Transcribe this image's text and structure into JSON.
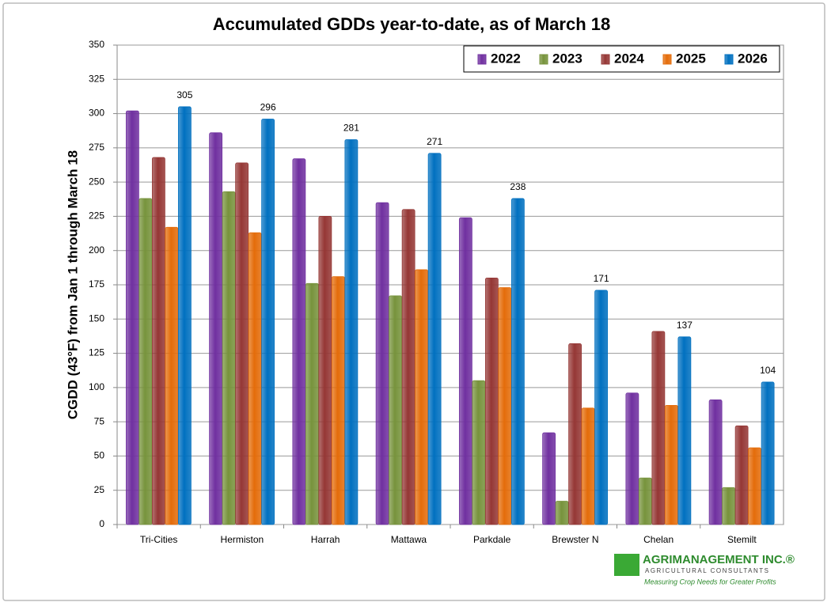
{
  "chart_data": {
    "type": "bar",
    "title": "Accumulated GDDs year-to-date, as of March 18",
    "y_label": "CGDD (43°F) from Jan 1 through March 18",
    "categories": [
      "Tri-Cities",
      "Hermiston",
      "Harrah",
      "Mattawa",
      "Parkdale",
      "Brewster N",
      "Chelan",
      "Stemilt"
    ],
    "series": [
      {
        "name": "2022",
        "color": "#7030a0",
        "values": [
          302,
          286,
          267,
          235,
          224,
          67,
          96,
          91
        ]
      },
      {
        "name": "2023",
        "color": "#77933c",
        "values": [
          238,
          243,
          176,
          167,
          105,
          17,
          34,
          27
        ]
      },
      {
        "name": "2024",
        "color": "#953735",
        "values": [
          268,
          264,
          225,
          230,
          180,
          132,
          141,
          72
        ]
      },
      {
        "name": "2025",
        "color": "#e46c0a",
        "values": [
          217,
          213,
          181,
          186,
          173,
          85,
          87,
          56
        ]
      },
      {
        "name": "2026",
        "color": "#0070c0",
        "values": [
          305,
          296,
          281,
          271,
          238,
          171,
          137,
          104
        ],
        "show_values": true
      }
    ],
    "ylim": [
      0,
      350
    ],
    "yticks": [
      0,
      25,
      50,
      75,
      100,
      125,
      150,
      175,
      200,
      225,
      250,
      275,
      300,
      325,
      350
    ],
    "grid": true,
    "legend": "top-right"
  },
  "logo": {
    "name": "AGRIMANAGEMENT INC.®",
    "subtitle": "AGRICULTURAL CONSULTANTS",
    "tagline": "Measuring Crop Needs for Greater Profits"
  }
}
